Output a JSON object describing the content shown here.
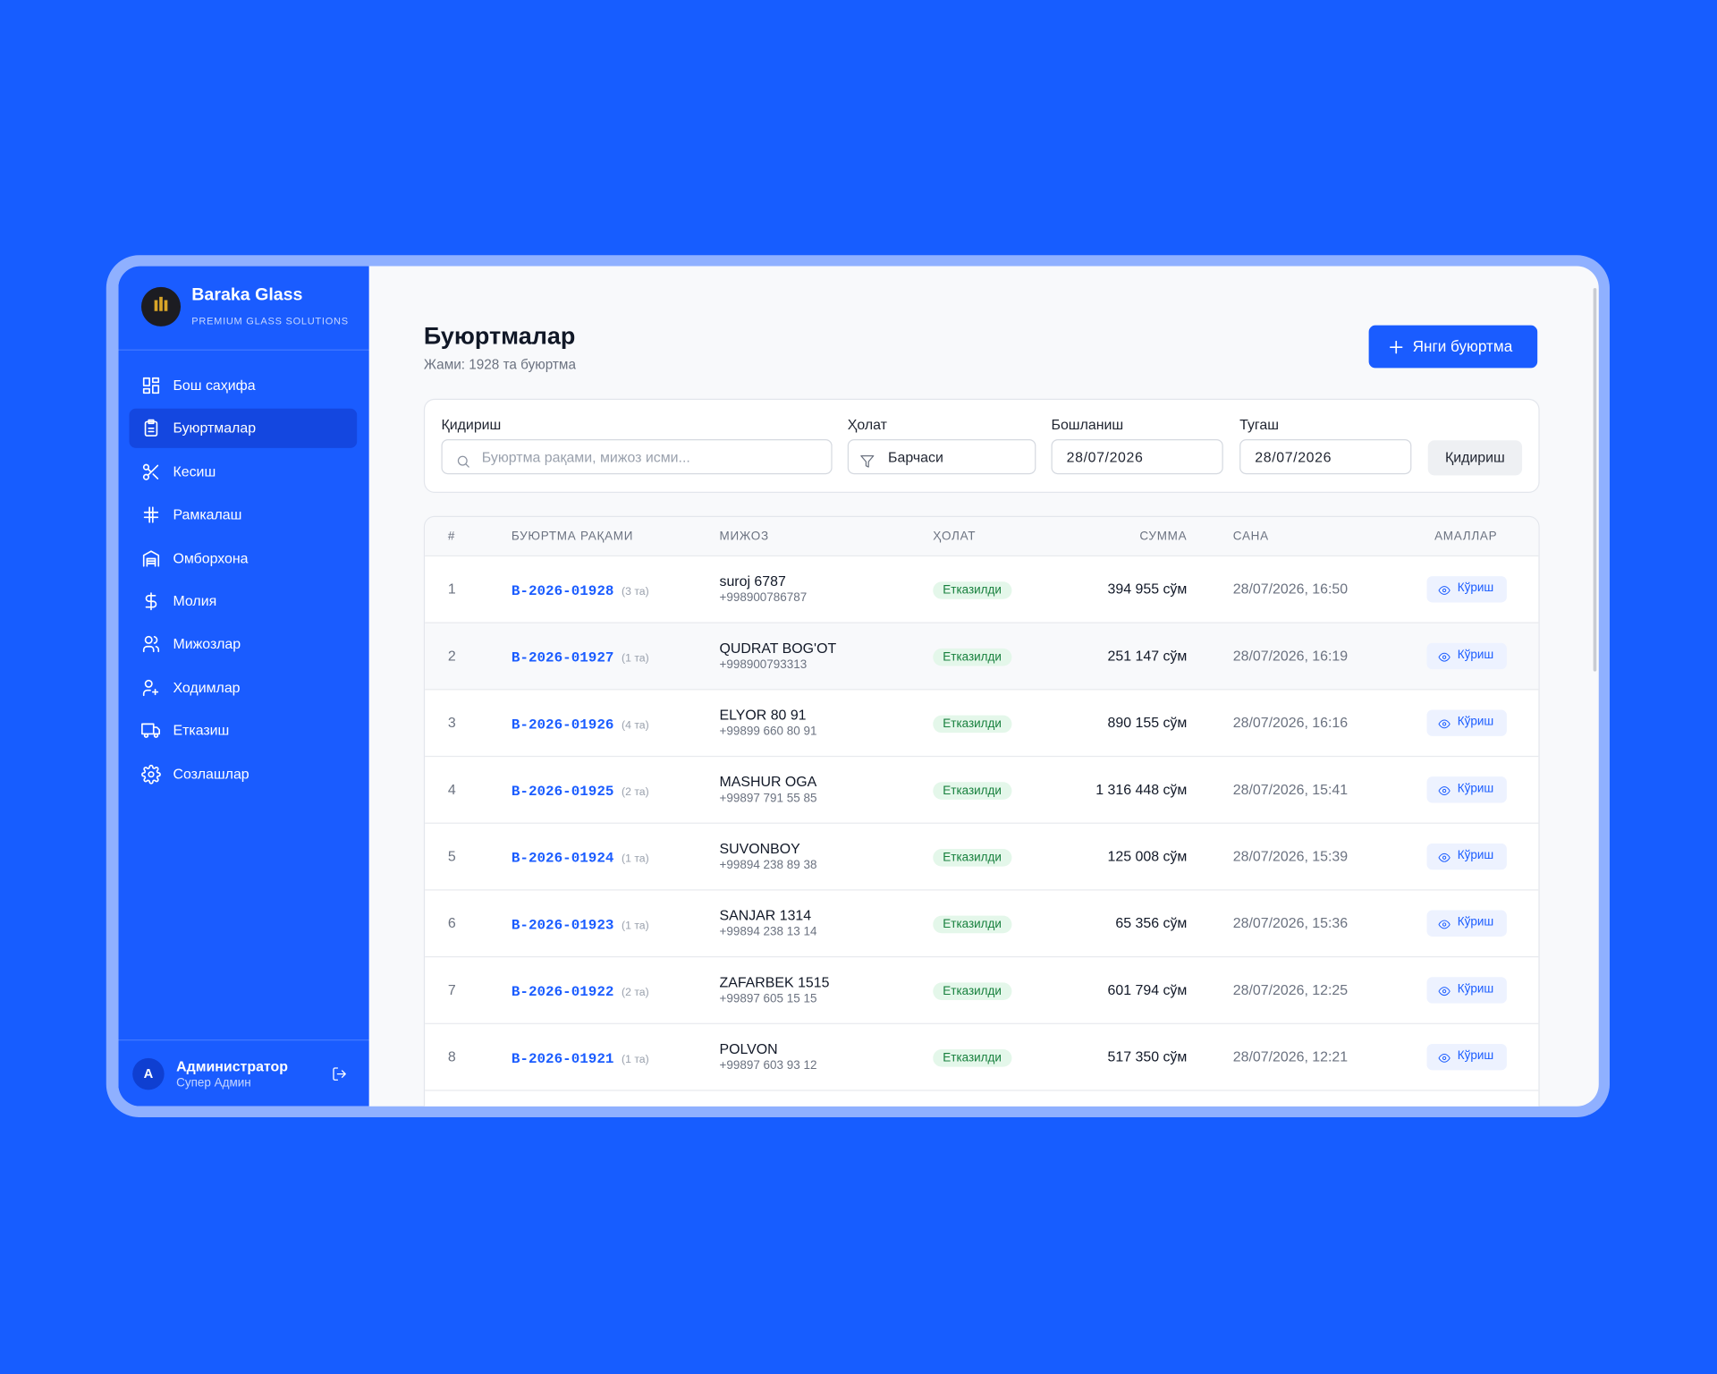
{
  "sidebar": {
    "brand": "Baraka Glass",
    "tagline": "PREMIUM GLASS SOLUTIONS",
    "nav": [
      "Бош саҳифа",
      "Буюртмалар",
      "Кесиш",
      "Рамкалаш",
      "Омборхона",
      "Молия",
      "Мижозлар",
      "Ходимлар",
      "Етказиш",
      "Созлашлар"
    ],
    "user": {
      "initial": "A",
      "name": "Администратор",
      "role": "Супер Админ"
    }
  },
  "header": {
    "title": "Буюртмалар",
    "subtitle": "Жами: 1928 та буюртма",
    "new_button": "Янги буюртма"
  },
  "filters": {
    "search_label": "Қидириш",
    "search_placeholder": "Буюртма рақами, мижоз исми...",
    "status_label": "Ҳолат",
    "status_value": "Барчаси",
    "start_label": "Бошланиш",
    "start_value": "28/07/2026",
    "end_label": "Тугаш",
    "end_value": "28/07/2026",
    "button": "Қидириш"
  },
  "table": {
    "columns": [
      "#",
      "БУЮРТМА РАҚАМИ",
      "МИЖОЗ",
      "ҲОЛАТ",
      "СУММА",
      "САНА",
      "АМАЛЛАР"
    ],
    "rows": [
      {
        "n": 1,
        "order": "B-2026-01928",
        "items": "(3 та)",
        "client": "suroj 6787",
        "phone": "+998900786787",
        "status": "Етказилди",
        "sum": "394 955 сўм",
        "date": "28/07/2026, 16:50",
        "action": "Кўриш"
      },
      {
        "n": 2,
        "order": "B-2026-01927",
        "items": "(1 та)",
        "client": "QUDRAT BOG'OT",
        "phone": "+998900793313",
        "status": "Етказилди",
        "sum": "251 147 сўм",
        "date": "28/07/2026, 16:19",
        "action": "Кўриш"
      },
      {
        "n": 3,
        "order": "B-2026-01926",
        "items": "(4 та)",
        "client": "ELYOR 80 91",
        "phone": "+99899 660 80 91",
        "status": "Етказилди",
        "sum": "890 155 сўм",
        "date": "28/07/2026, 16:16",
        "action": "Кўриш"
      },
      {
        "n": 4,
        "order": "B-2026-01925",
        "items": "(2 та)",
        "client": "MASHUR OGA",
        "phone": "+99897 791 55 85",
        "status": "Етказилди",
        "sum": "1 316 448 сўм",
        "date": "28/07/2026, 15:41",
        "action": "Кўриш"
      },
      {
        "n": 5,
        "order": "B-2026-01924",
        "items": "(1 та)",
        "client": "SUVONBOY",
        "phone": "+99894 238 89 38",
        "status": "Етказилди",
        "sum": "125 008 сўм",
        "date": "28/07/2026, 15:39",
        "action": "Кўриш"
      },
      {
        "n": 6,
        "order": "B-2026-01923",
        "items": "(1 та)",
        "client": "SANJAR 1314",
        "phone": "+99894 238 13 14",
        "status": "Етказилди",
        "sum": "65 356 сўм",
        "date": "28/07/2026, 15:36",
        "action": "Кўриш"
      },
      {
        "n": 7,
        "order": "B-2026-01922",
        "items": "(2 та)",
        "client": "ZAFARBEK 1515",
        "phone": "+99897 605 15 15",
        "status": "Етказилди",
        "sum": "601 794 сўм",
        "date": "28/07/2026, 12:25",
        "action": "Кўриш"
      },
      {
        "n": 8,
        "order": "B-2026-01921",
        "items": "(1 та)",
        "client": "POLVON",
        "phone": "+99897 603 93 12",
        "status": "Етказилди",
        "sum": "517 350 сўм",
        "date": "28/07/2026, 12:21",
        "action": "Кўриш"
      }
    ]
  }
}
